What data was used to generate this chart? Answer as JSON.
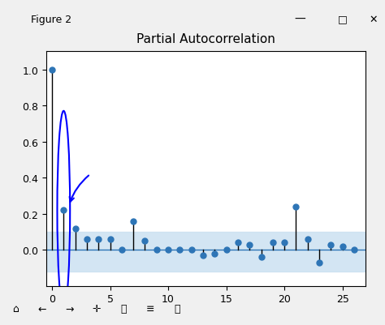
{
  "title": "Partial Autocorrelation",
  "xlim": [
    -0.5,
    27
  ],
  "ylim": [
    -0.2,
    1.1
  ],
  "xticks": [
    0,
    5,
    10,
    15,
    20,
    25
  ],
  "yticks": [
    0.0,
    0.2,
    0.4,
    0.6,
    0.8,
    1.0
  ],
  "conf_upper": 0.1,
  "conf_lower": -0.12,
  "conf_color": "#c8dff0",
  "conf_alpha": 0.8,
  "stem_color": "#000000",
  "marker_color": "#2e75b6",
  "marker_size": 5,
  "zero_line_color": "#2e75b6",
  "pacf_values": [
    1.0,
    0.22,
    0.12,
    0.06,
    0.06,
    0.06,
    0.0,
    0.16,
    0.05,
    0.0,
    0.0,
    0.0,
    0.0,
    -0.03,
    -0.02,
    0.0,
    0.04,
    0.03,
    -0.04,
    0.04,
    0.04,
    0.24,
    0.06,
    -0.07,
    0.03,
    0.02,
    0.0
  ],
  "bg_color": "#ffffff",
  "figure_bg": "#f0f0f0",
  "titlebar_color": "#f0f0f0",
  "titlebar_text": "Figure 2",
  "window_bg": "#f0f0f0"
}
